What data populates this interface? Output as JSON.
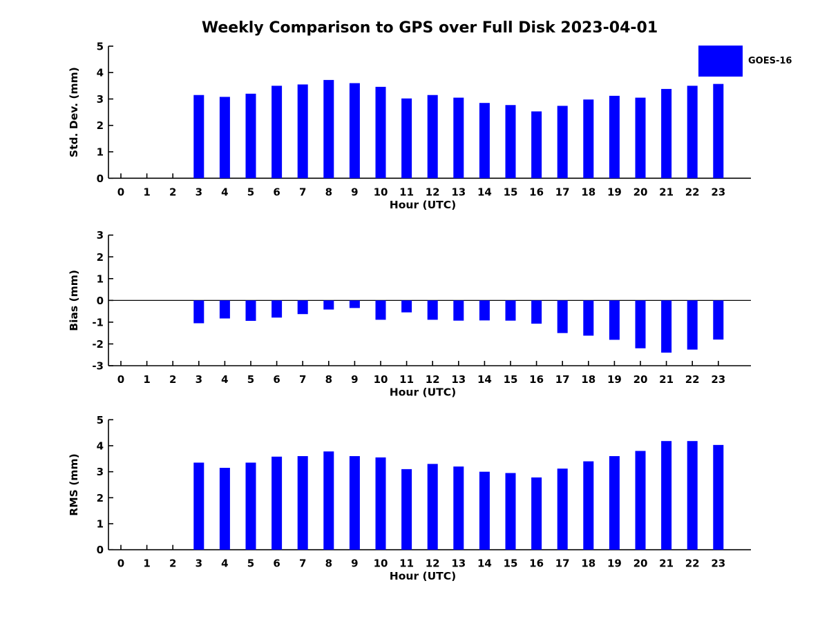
{
  "title": "Weekly Comparison to GPS over Full Disk 2023-04-01",
  "legend": {
    "label": "GOES-16",
    "color": "#0000FF"
  },
  "colors": {
    "bar": "#0000FF",
    "axis": "#000000",
    "text": "#000000"
  },
  "chart_data": [
    {
      "type": "bar",
      "name": "std-dev",
      "title": "Weekly Comparison to GPS over Full Disk 2023-04-01",
      "ylabel": "Std. Dev. (mm)",
      "xlabel": "Hour (UTC)",
      "ylim": [
        0,
        5
      ],
      "yticks": [
        0,
        1,
        2,
        3,
        4,
        5
      ],
      "legend_entries": [
        "GOES-16"
      ],
      "legend_position": "upper right",
      "grid": false,
      "categories": [
        0,
        1,
        2,
        3,
        4,
        5,
        6,
        7,
        8,
        9,
        10,
        11,
        12,
        13,
        14,
        15,
        16,
        17,
        18,
        19,
        20,
        21,
        22,
        23
      ],
      "values": [
        0,
        0,
        0,
        3.15,
        3.08,
        3.2,
        3.5,
        3.55,
        3.72,
        3.6,
        3.46,
        3.02,
        3.15,
        3.05,
        2.85,
        2.77,
        2.53,
        2.74,
        2.98,
        3.12,
        3.05,
        3.38,
        3.5,
        3.57
      ]
    },
    {
      "type": "bar",
      "name": "bias",
      "ylabel": "Bias (mm)",
      "xlabel": "Hour (UTC)",
      "ylim": [
        -3,
        3
      ],
      "yticks": [
        -3,
        -2,
        -1,
        0,
        1,
        2,
        3
      ],
      "zero_line": true,
      "grid": false,
      "categories": [
        0,
        1,
        2,
        3,
        4,
        5,
        6,
        7,
        8,
        9,
        10,
        11,
        12,
        13,
        14,
        15,
        16,
        17,
        18,
        19,
        20,
        21,
        22,
        23
      ],
      "values": [
        0,
        0,
        0,
        -1.05,
        -0.83,
        -0.94,
        -0.79,
        -0.63,
        -0.42,
        -0.35,
        -0.89,
        -0.55,
        -0.89,
        -0.93,
        -0.92,
        -0.93,
        -1.07,
        -1.5,
        -1.62,
        -1.81,
        -2.2,
        -2.4,
        -2.26,
        -1.8
      ]
    },
    {
      "type": "bar",
      "name": "rms",
      "ylabel": "RMS (mm)",
      "xlabel": "Hour (UTC)",
      "ylim": [
        0,
        5
      ],
      "yticks": [
        0,
        1,
        2,
        3,
        4,
        5
      ],
      "grid": false,
      "categories": [
        0,
        1,
        2,
        3,
        4,
        5,
        6,
        7,
        8,
        9,
        10,
        11,
        12,
        13,
        14,
        15,
        16,
        17,
        18,
        19,
        20,
        21,
        22,
        23
      ],
      "values": [
        0,
        0,
        0,
        3.35,
        3.15,
        3.35,
        3.58,
        3.6,
        3.78,
        3.6,
        3.55,
        3.1,
        3.3,
        3.2,
        3.0,
        2.95,
        2.78,
        3.12,
        3.4,
        3.6,
        3.8,
        4.18,
        4.18,
        4.03
      ]
    }
  ]
}
